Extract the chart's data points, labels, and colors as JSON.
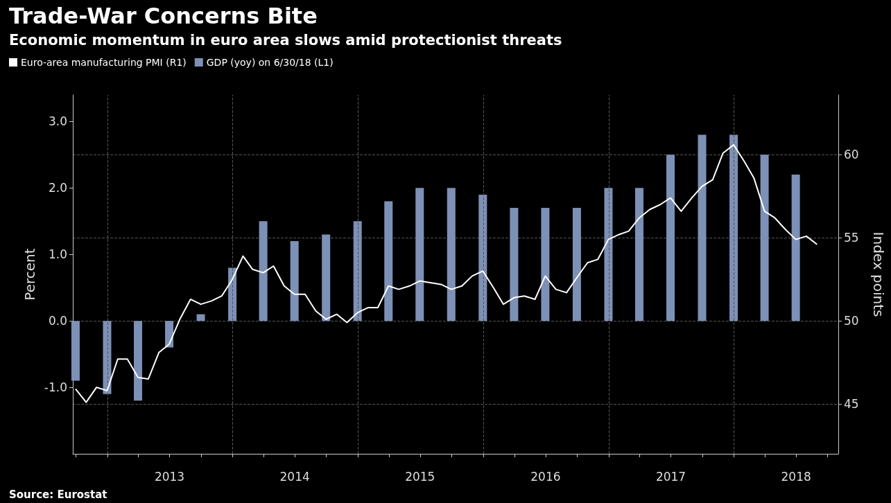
{
  "chart_data": {
    "type": "bar",
    "title": "Trade-War Concerns Bite",
    "subtitle": "Economic momentum in euro area slows amid protectionist threats",
    "ylabel": "Percent",
    "y2label": "Index points",
    "annotations": [
      "Source: Eurostat"
    ],
    "xlim": [
      "2012-09-22",
      "2018-11-01"
    ],
    "xticks": [
      {
        "value": "2012-10-01",
        "label": null
      },
      {
        "value": "2013-01-01",
        "label": null
      },
      {
        "value": "2013-04-01",
        "label": null
      },
      {
        "value": "2013-07-01",
        "label": "2013"
      },
      {
        "value": "2013-10-01",
        "label": null
      },
      {
        "value": "2014-01-01",
        "label": null
      },
      {
        "value": "2014-04-01",
        "label": null
      },
      {
        "value": "2014-07-01",
        "label": "2014"
      },
      {
        "value": "2014-10-01",
        "label": null
      },
      {
        "value": "2015-01-01",
        "label": null
      },
      {
        "value": "2015-04-01",
        "label": null
      },
      {
        "value": "2015-07-01",
        "label": "2015"
      },
      {
        "value": "2015-10-01",
        "label": null
      },
      {
        "value": "2016-01-01",
        "label": null
      },
      {
        "value": "2016-04-01",
        "label": null
      },
      {
        "value": "2016-07-01",
        "label": "2016"
      },
      {
        "value": "2016-10-01",
        "label": null
      },
      {
        "value": "2017-01-01",
        "label": null
      },
      {
        "value": "2017-04-01",
        "label": null
      },
      {
        "value": "2017-07-01",
        "label": "2017"
      },
      {
        "value": "2017-10-01",
        "label": null
      },
      {
        "value": "2018-01-01",
        "label": null
      },
      {
        "value": "2018-04-01",
        "label": null
      },
      {
        "value": "2018-07-01",
        "label": "2018"
      },
      {
        "value": "2018-10-01",
        "label": null
      }
    ],
    "ylim": [
      -2,
      3.4
    ],
    "yticks": [
      {
        "value": -1,
        "label": "-1.0"
      },
      {
        "value": 0,
        "label": "0.0"
      },
      {
        "value": 1,
        "label": "1.0"
      },
      {
        "value": 2,
        "label": "2.0"
      },
      {
        "value": 3,
        "label": "3.0"
      }
    ],
    "y2lim": [
      42,
      63.6
    ],
    "y2ticks": [
      45,
      50,
      55,
      60
    ],
    "grid": true,
    "legend": "top left",
    "marker": "none",
    "series": [
      {
        "name": "Euro-area manufacturing PMI (R1)",
        "type": "line",
        "axis": "y2",
        "color": "#ffffff",
        "x": [
          "2012-09-30",
          "2012-10-31",
          "2012-11-30",
          "2012-12-31",
          "2013-01-31",
          "2013-02-28",
          "2013-03-31",
          "2013-04-30",
          "2013-05-31",
          "2013-06-30",
          "2013-07-31",
          "2013-08-31",
          "2013-09-30",
          "2013-10-31",
          "2013-11-30",
          "2013-12-31",
          "2014-01-31",
          "2014-02-28",
          "2014-03-31",
          "2014-04-30",
          "2014-05-31",
          "2014-06-30",
          "2014-07-31",
          "2014-08-31",
          "2014-09-30",
          "2014-10-31",
          "2014-11-30",
          "2014-12-31",
          "2015-01-31",
          "2015-02-28",
          "2015-03-31",
          "2015-04-30",
          "2015-05-31",
          "2015-06-30",
          "2015-07-31",
          "2015-08-31",
          "2015-09-30",
          "2015-10-31",
          "2015-11-30",
          "2015-12-31",
          "2016-01-31",
          "2016-02-29",
          "2016-03-31",
          "2016-04-30",
          "2016-05-31",
          "2016-06-30",
          "2016-07-31",
          "2016-08-31",
          "2016-09-30",
          "2016-10-31",
          "2016-11-30",
          "2016-12-31",
          "2017-01-31",
          "2017-02-28",
          "2017-03-31",
          "2017-04-30",
          "2017-05-31",
          "2017-06-30",
          "2017-07-31",
          "2017-08-31",
          "2017-09-30",
          "2017-10-31",
          "2017-11-30",
          "2017-12-31",
          "2018-01-31",
          "2018-02-28",
          "2018-03-31",
          "2018-04-30",
          "2018-05-31",
          "2018-06-30",
          "2018-07-31",
          "2018-08-31"
        ],
        "values": [
          45.9,
          45.1,
          46.0,
          45.8,
          47.7,
          47.7,
          46.6,
          46.5,
          48.1,
          48.6,
          50.1,
          51.3,
          51.0,
          51.2,
          51.5,
          52.5,
          53.9,
          53.1,
          52.9,
          53.3,
          52.1,
          51.6,
          51.6,
          50.6,
          50.1,
          50.4,
          49.9,
          50.5,
          50.8,
          50.8,
          52.1,
          51.9,
          52.1,
          52.4,
          52.3,
          52.2,
          51.9,
          52.1,
          52.7,
          53.0,
          52.0,
          51.0,
          51.4,
          51.5,
          51.3,
          52.7,
          51.9,
          51.7,
          52.6,
          53.5,
          53.7,
          54.9,
          55.2,
          55.4,
          56.2,
          56.7,
          57.0,
          57.4,
          56.6,
          57.4,
          58.1,
          58.5,
          60.1,
          60.6,
          59.6,
          58.6,
          56.6,
          56.2,
          55.5,
          54.9,
          55.1,
          54.6
        ]
      },
      {
        "name": "GDP (yoy) on 6/30/18 (L1)",
        "axis": "y",
        "color": "#7d90b6",
        "x": [
          "2012-09-30",
          "2012-12-31",
          "2013-03-31",
          "2013-06-30",
          "2013-09-30",
          "2013-12-31",
          "2014-03-31",
          "2014-06-30",
          "2014-09-30",
          "2014-12-31",
          "2015-03-31",
          "2015-06-30",
          "2015-09-30",
          "2015-12-31",
          "2016-03-31",
          "2016-06-30",
          "2016-09-30",
          "2016-12-31",
          "2017-03-31",
          "2017-06-30",
          "2017-09-30",
          "2017-12-31",
          "2018-03-31",
          "2018-06-30"
        ],
        "values": [
          -0.9,
          -1.1,
          -1.2,
          -0.4,
          0.1,
          0.8,
          1.5,
          1.2,
          1.3,
          1.5,
          1.8,
          2.0,
          2.0,
          1.9,
          1.7,
          1.7,
          1.7,
          2.0,
          2.0,
          2.5,
          2.8,
          2.8,
          2.5,
          2.2
        ]
      }
    ]
  }
}
